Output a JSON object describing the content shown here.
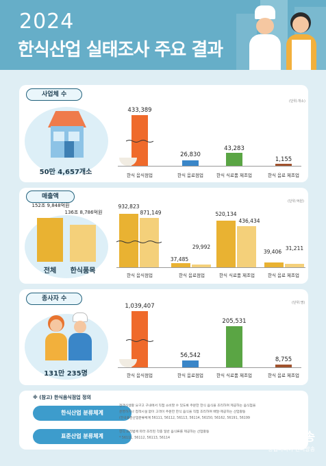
{
  "header": {
    "year": "2024",
    "title": "한식산업 실태조사 주요 결과"
  },
  "sections": {
    "business": {
      "tag": "사업체 수",
      "unit": "(단위:개소)",
      "total": "50만 4,657개소",
      "bars": [
        {
          "value": "433,389",
          "label": "한식 음식점업",
          "color": "#ef6a2b"
        },
        {
          "value": "26,830",
          "label": "한식 음료점업",
          "color": "#3a86c8"
        },
        {
          "value": "43,283",
          "label": "한식 식료품 제조업",
          "color": "#5aa544"
        },
        {
          "value": "1,155",
          "label": "한식 음료 제조업",
          "color": "#a0522d"
        }
      ]
    },
    "sales": {
      "tag": "매출액",
      "unit": "(단위:억원)",
      "total_label": "전체",
      "total_value": "152조 9,848억원",
      "hansik_label": "한식품목",
      "hansik_value": "136조 8,786억원",
      "groups": [
        {
          "label": "한식 음식점업",
          "total": "932,823",
          "hansik": "871,149"
        },
        {
          "label": "한식 음료점업",
          "total": "37,485",
          "hansik": "29,992"
        },
        {
          "label": "한식 식료품 제조업",
          "total": "520,134",
          "hansik": "436,434"
        },
        {
          "label": "한식 음료 제조업",
          "total": "39,406",
          "hansik": "31,211"
        }
      ]
    },
    "workers": {
      "tag": "종사자 수",
      "unit": "(단위:명)",
      "total": "131만 235명",
      "bars": [
        {
          "value": "1,039,407",
          "label": "한식 음식점업",
          "color": "#ef6a2b"
        },
        {
          "value": "56,542",
          "label": "한식 음료점업",
          "color": "#3a86c8"
        },
        {
          "value": "205,531",
          "label": "한식 식료품 제조업",
          "color": "#5aa544"
        },
        {
          "value": "8,755",
          "label": "한식 음료 제조업",
          "color": "#a0522d"
        }
      ]
    }
  },
  "reference": {
    "title": "※ (참고) 한식음식점업 정의",
    "industry_label": "한식산업 분류체계",
    "industry_text_1": "정객식생활 요구고 구내에서 직접 소비할 수 있도록 주문한 한식 음식을 조리하여 제공하는 음식점을",
    "industry_text_2": "운영하거나 접객시설 없이 고객이 주문한 한식 음식을 직접 조리하여 배달·제공하는 산업활동",
    "industry_text_3": "(한국표준산업분류체계 56111, 56112, 56113, 56114, 56150, 56162, 56191, 56199",
    "standard_label": "표준산업 분류체계",
    "standard_text_1": "한식 요리법에 따라 조리된 각종 일반 음식류를 제공하는 산업활동",
    "standard_text_2": "* 56111, 56112, 56113, 56114"
  },
  "watermark": {
    "brand": "OTO방송",
    "sub": "종합미디어 엔터방송"
  }
}
